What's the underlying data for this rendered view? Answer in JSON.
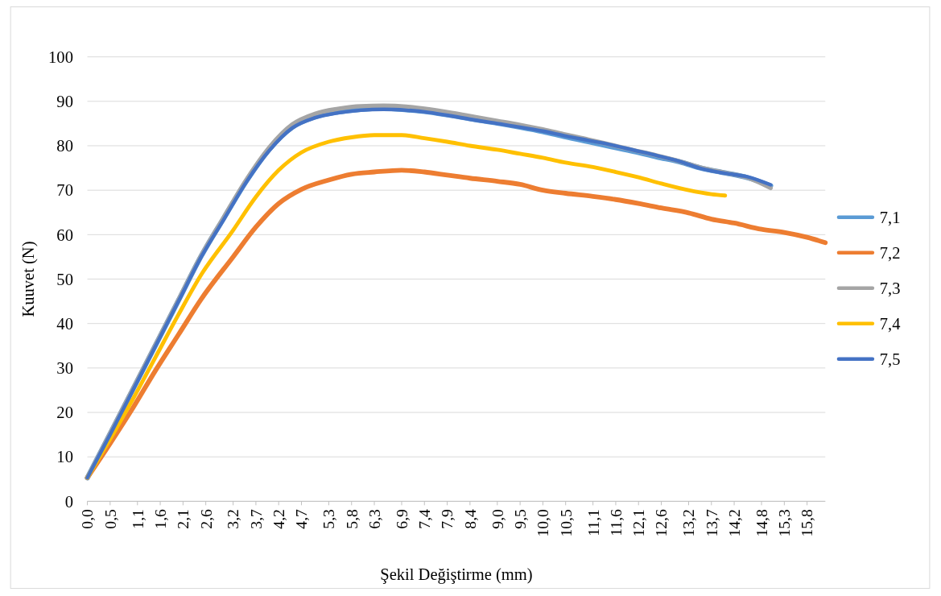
{
  "chart_data": {
    "type": "line",
    "xlabel": "Şekil Değiştirme (mm)",
    "ylabel": "Kuuvet (N)",
    "xlim": [
      0,
      16.2
    ],
    "ylim": [
      0,
      100
    ],
    "xticks": [
      {
        "value": 0,
        "label": "0,0"
      },
      {
        "value": 0.5,
        "label": "0,5"
      },
      {
        "value": 1.1,
        "label": "1,1"
      },
      {
        "value": 1.6,
        "label": "1,6"
      },
      {
        "value": 2.1,
        "label": "2,1"
      },
      {
        "value": 2.6,
        "label": "2,6"
      },
      {
        "value": 3.2,
        "label": "3,2"
      },
      {
        "value": 3.7,
        "label": "3,7"
      },
      {
        "value": 4.2,
        "label": "4,2"
      },
      {
        "value": 4.7,
        "label": "4,7"
      },
      {
        "value": 5.3,
        "label": "5,3"
      },
      {
        "value": 5.8,
        "label": "5,8"
      },
      {
        "value": 6.3,
        "label": "6,3"
      },
      {
        "value": 6.9,
        "label": "6,9"
      },
      {
        "value": 7.4,
        "label": "7,4"
      },
      {
        "value": 7.9,
        "label": "7,9"
      },
      {
        "value": 8.4,
        "label": "8,4"
      },
      {
        "value": 9.0,
        "label": "9,0"
      },
      {
        "value": 9.5,
        "label": "9,5"
      },
      {
        "value": 10.0,
        "label": "10,0"
      },
      {
        "value": 10.5,
        "label": "10,5"
      },
      {
        "value": 11.1,
        "label": "11,1"
      },
      {
        "value": 11.6,
        "label": "11,6"
      },
      {
        "value": 12.1,
        "label": "12,1"
      },
      {
        "value": 12.6,
        "label": "12,6"
      },
      {
        "value": 13.2,
        "label": "13,2"
      },
      {
        "value": 13.7,
        "label": "13,7"
      },
      {
        "value": 14.2,
        "label": "14,2"
      },
      {
        "value": 14.8,
        "label": "14,8"
      },
      {
        "value": 15.3,
        "label": "15,3"
      },
      {
        "value": 15.8,
        "label": "15,8"
      }
    ],
    "yticks": [
      0,
      10,
      20,
      30,
      40,
      50,
      60,
      70,
      80,
      90,
      100
    ],
    "grid": "y",
    "legend": "right",
    "marker": "none",
    "line_style": "solid",
    "series": [
      {
        "name": "7,1",
        "color": "#5b9bd5",
        "x": [
          0,
          0.5,
          1,
          1.5,
          2,
          2.5,
          3,
          3.5,
          4,
          4.5,
          5,
          5.5,
          6,
          6.5,
          7,
          7.5,
          8,
          8.5,
          9,
          9.5,
          10,
          10.5,
          11,
          11.5,
          12,
          12.5,
          13,
          13.5,
          14,
          14.5,
          15
        ],
        "values": [
          5.3,
          15.2,
          25.2,
          35.2,
          45.2,
          55.2,
          63.8,
          72.2,
          79.3,
          84.2,
          86.5,
          87.6,
          88.2,
          88.4,
          88.1,
          87.6,
          86.8,
          85.9,
          85.1,
          84.2,
          83.2,
          82,
          80.9,
          79.8,
          78.7,
          77.5,
          76.4,
          74.9,
          73.9,
          72.8,
          71
        ]
      },
      {
        "name": "7,2",
        "color": "#ed7d31",
        "x": [
          0,
          0.5,
          1,
          1.5,
          2,
          2.5,
          3.2,
          3.7,
          4.2,
          4.7,
          5.3,
          5.8,
          6.3,
          6.9,
          7.4,
          7.9,
          8.4,
          9,
          9.5,
          10,
          10.5,
          11.1,
          11.6,
          12.1,
          12.6,
          13.2,
          13.7,
          14.2,
          14.8,
          15.3,
          15.8,
          16.2
        ],
        "values": [
          5.3,
          13,
          21,
          29.5,
          37.5,
          45.5,
          55,
          61.7,
          67,
          70.2,
          72.3,
          73.6,
          74.1,
          74.5,
          74.1,
          73.4,
          72.7,
          72,
          71.3,
          70,
          69.3,
          68.6,
          67.9,
          67,
          66,
          64.9,
          63.5,
          62.6,
          61.2,
          60.5,
          59.4,
          58.2
        ]
      },
      {
        "name": "7,3",
        "color": "#a5a5a5",
        "x": [
          0,
          0.5,
          1,
          1.5,
          2,
          2.5,
          3,
          3.5,
          4,
          4.5,
          5,
          5.5,
          6,
          6.5,
          7,
          7.5,
          8,
          8.5,
          9,
          9.5,
          10,
          10.5,
          11,
          11.5,
          12,
          12.5,
          13,
          13.5,
          14,
          14.5,
          15
        ],
        "values": [
          5.3,
          15.3,
          25.3,
          35.3,
          45.3,
          55.3,
          64,
          72.5,
          79.7,
          84.8,
          87.2,
          88.3,
          88.9,
          89,
          88.8,
          88.2,
          87.4,
          86.5,
          85.6,
          84.7,
          83.7,
          82.5,
          81.4,
          80.2,
          79,
          77.8,
          76.5,
          75,
          73.9,
          72.8,
          70.5
        ]
      },
      {
        "name": "7,4",
        "color": "#ffc000",
        "x": [
          0,
          0.5,
          1,
          1.5,
          2,
          2.5,
          3.2,
          3.7,
          4.2,
          4.7,
          5.3,
          5.8,
          6.3,
          6.9,
          7.4,
          7.9,
          8.4,
          9,
          9.5,
          10,
          10.5,
          11.1,
          11.6,
          12.1,
          12.6,
          13.2,
          13.7,
          14
        ],
        "values": [
          5.3,
          14,
          23,
          32.5,
          42,
          51,
          61,
          68.5,
          74.5,
          78.5,
          80.9,
          81.9,
          82.4,
          82.4,
          81.7,
          80.9,
          80,
          79.1,
          78.2,
          77.3,
          76.2,
          75.2,
          74.1,
          72.9,
          71.5,
          70,
          69.1,
          68.8
        ]
      },
      {
        "name": "7,5",
        "color": "#4472c4",
        "x": [
          0,
          0.5,
          1,
          1.5,
          2,
          2.5,
          3,
          3.5,
          4,
          4.5,
          5,
          5.5,
          6,
          6.5,
          7,
          7.5,
          8,
          8.5,
          9,
          9.5,
          10,
          10.5,
          11,
          11.5,
          12,
          12.5,
          13,
          13.5,
          14,
          14.5,
          15
        ],
        "values": [
          5.3,
          15,
          25,
          35,
          45,
          55,
          63.5,
          72,
          79,
          84,
          86.3,
          87.4,
          88,
          88.2,
          88,
          87.5,
          86.7,
          85.8,
          85,
          84.2,
          83.3,
          82.2,
          81.2,
          80.2,
          79,
          77.8,
          76.5,
          74.8,
          73.8,
          73,
          71.2
        ]
      }
    ]
  }
}
